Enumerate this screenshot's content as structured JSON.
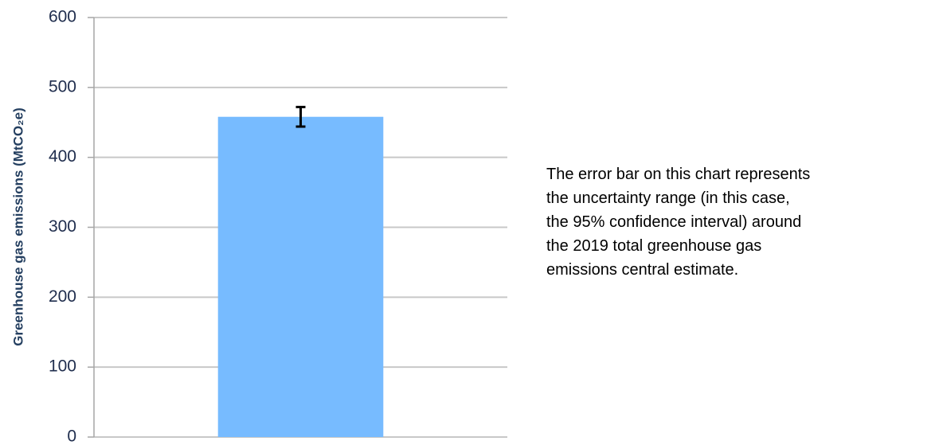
{
  "chart_data": {
    "type": "bar",
    "y_label": "Greenhouse gas emissions (MtCO₂e)",
    "categories": [
      null
    ],
    "values": [
      458
    ],
    "errors": [
      14
    ],
    "color": "#77bbff",
    "ylim": [
      0,
      600
    ],
    "yticks": [
      0,
      100,
      200,
      300,
      400,
      500,
      600
    ],
    "grid": true,
    "annotation": [
      "The error bar on this chart represents",
      "the uncertainty range (in this case,",
      "the 95% confidence interval) around",
      "the 2019 total greenhouse gas",
      "emissions central estimate."
    ]
  }
}
